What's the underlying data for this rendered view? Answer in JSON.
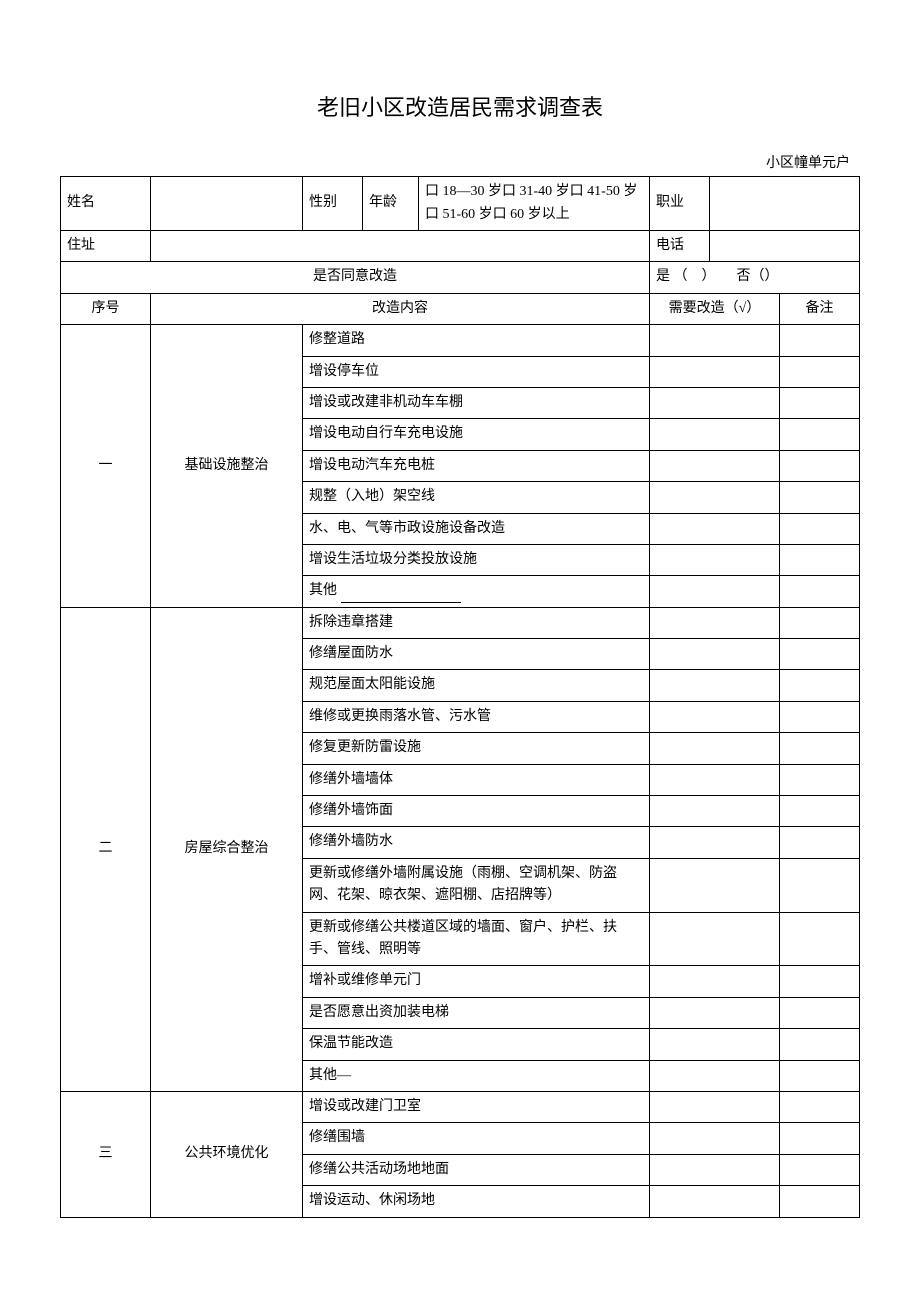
{
  "title": "老旧小区改造居民需求调查表",
  "sub_header": "小区幢单元户",
  "personal": {
    "name_label": "姓名",
    "gender_label": "性别",
    "age_label": "年龄",
    "age_options": "口 18—30 岁口 31-40 岁口 41-50 岁口 51-60 岁口 60 岁以上",
    "occupation_label": "职业",
    "address_label": "住址",
    "phone_label": "电话"
  },
  "consent": {
    "question": "是否同意改造",
    "answer": "是  （　）　　否（）"
  },
  "header": {
    "seq": "序号",
    "content": "改造内容",
    "need": "需要改造（√）",
    "note": "备注"
  },
  "sections": [
    {
      "seq": "一",
      "category": "基础设施整治",
      "items": [
        "修整道路",
        "增设停车位",
        "增设或改建非机动车车棚",
        "增设电动自行车充电设施",
        "增设电动汽车充电桩",
        "规整（入地）架空线",
        "水、电、气等市政设施设备改造",
        "增设生活垃圾分类投放设施",
        "其他"
      ]
    },
    {
      "seq": "二",
      "category": "房屋综合整治",
      "items": [
        "拆除违章搭建",
        "修缮屋面防水",
        "规范屋面太阳能设施",
        "维修或更换雨落水管、污水管",
        "修复更新防雷设施",
        "修缮外墙墙体",
        "修缮外墙饰面",
        "修缮外墙防水",
        "更新或修缮外墙附属设施（雨棚、空调机架、防盗网、花架、晾衣架、遮阳棚、店招牌等）",
        "更新或修缮公共楼道区域的墙面、窗户、护栏、扶手、管线、照明等",
        "增补或维修单元门",
        "是否愿意出资加装电梯",
        "保温节能改造",
        "其他—"
      ]
    },
    {
      "seq": "三",
      "category": "公共环境优化",
      "items": [
        "增设或改建门卫室",
        "修缮围墙",
        "修缮公共活动场地地面",
        "增设运动、休闲场地"
      ]
    }
  ]
}
